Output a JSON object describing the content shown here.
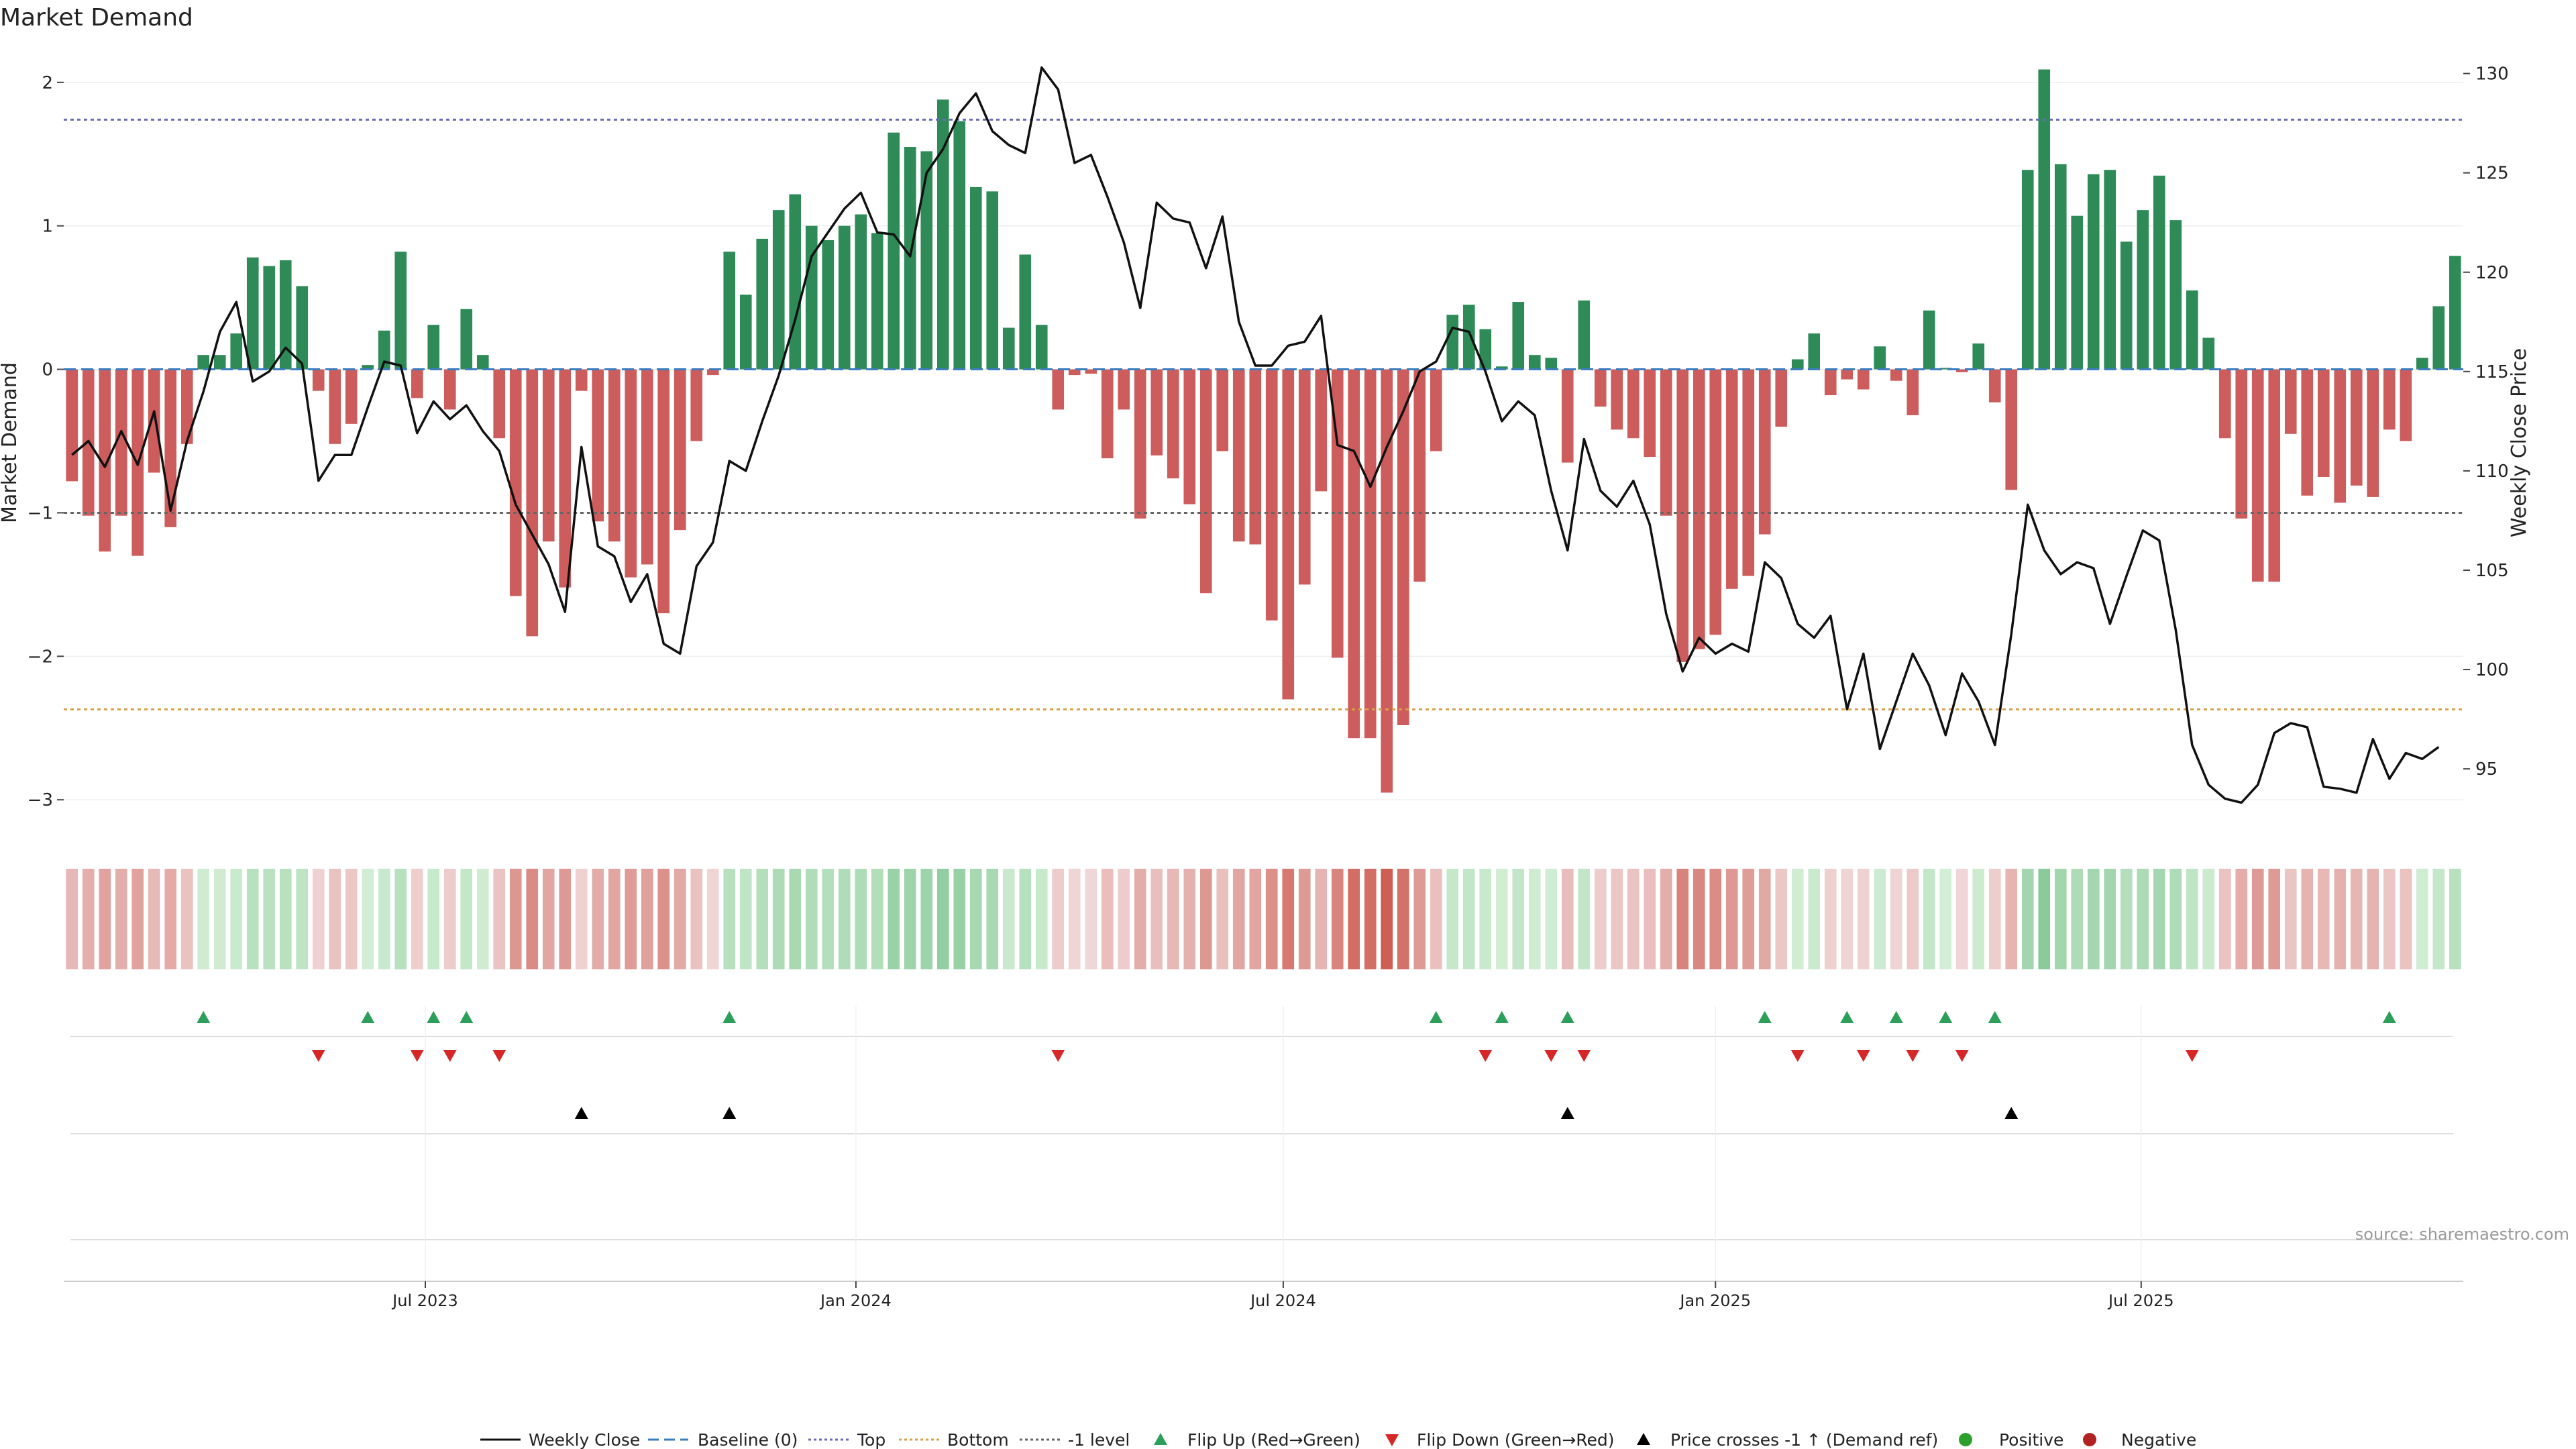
{
  "chart_data": {
    "type": "bar",
    "title": "Market Demand",
    "ylabel": "Market Demand",
    "y2label": "Weekly Close Price",
    "source": "source: sharemaestro.com",
    "ylim": [
      -3.2,
      2.2
    ],
    "y_ticks": [
      {
        "value": 2,
        "label": "2"
      },
      {
        "value": 1,
        "label": "1"
      },
      {
        "value": 0,
        "label": "0"
      },
      {
        "value": -1,
        "label": "−1"
      },
      {
        "value": -2,
        "label": "−2"
      },
      {
        "value": -3,
        "label": "−3"
      }
    ],
    "y2lim": [
      92,
      131
    ],
    "y2_ticks": [
      {
        "value": 130,
        "label": "130"
      },
      {
        "value": 125,
        "label": "125"
      },
      {
        "value": 120,
        "label": "120"
      },
      {
        "value": 115,
        "label": "115"
      },
      {
        "value": 110,
        "label": "110"
      },
      {
        "value": 105,
        "label": "105"
      },
      {
        "value": 100,
        "label": "100"
      },
      {
        "value": 95,
        "label": "95"
      }
    ],
    "x_ticks": [
      {
        "week": 21.5,
        "label": "Jul 2023"
      },
      {
        "week": 47.7,
        "label": "Jan 2024"
      },
      {
        "week": 73.7,
        "label": "Jul 2024"
      },
      {
        "week": 100,
        "label": "Jan 2025"
      },
      {
        "week": 125.9,
        "label": "Jul 2025"
      }
    ],
    "reference_lines": [
      {
        "name": "Top",
        "value": 1.74,
        "color": "#6b6bb5"
      },
      {
        "name": "Bottom",
        "value": -2.37,
        "color": "#d9a04a"
      },
      {
        "name": "-1 level",
        "value": -1.0,
        "color": "#666666"
      },
      {
        "name": "Baseline (0)",
        "value": 0,
        "color": "#3b7dbf"
      }
    ],
    "demand": [
      -0.78,
      -1.02,
      -1.27,
      -1.02,
      -1.3,
      -0.72,
      -1.1,
      -0.52,
      0.1,
      0.1,
      0.25,
      0.78,
      0.72,
      0.76,
      0.58,
      -0.15,
      -0.52,
      -0.38,
      0.03,
      0.27,
      0.82,
      -0.2,
      0.31,
      -0.28,
      0.42,
      0.1,
      -0.48,
      -1.58,
      -1.86,
      -1.2,
      -1.52,
      -0.15,
      -1.06,
      -1.2,
      -1.45,
      -1.36,
      -1.7,
      -1.12,
      -0.5,
      -0.04,
      0.82,
      0.52,
      0.91,
      1.11,
      1.22,
      1.0,
      0.9,
      1.0,
      1.08,
      0.95,
      1.65,
      1.55,
      1.52,
      1.88,
      1.73,
      1.27,
      1.24,
      0.29,
      0.8,
      0.31,
      -0.28,
      -0.04,
      -0.03,
      -0.62,
      -0.28,
      -1.04,
      -0.6,
      -0.76,
      -0.94,
      -1.56,
      -0.57,
      -1.2,
      -1.22,
      -1.75,
      -2.3,
      -1.5,
      -0.85,
      -2.01,
      -2.57,
      -2.57,
      -2.95,
      -2.48,
      -1.48,
      -0.57,
      0.38,
      0.45,
      0.28,
      0.02,
      0.47,
      0.1,
      0.08,
      -0.65,
      0.48,
      -0.26,
      -0.42,
      -0.48,
      -0.61,
      -1.02,
      -2.04,
      -1.95,
      -1.85,
      -1.53,
      -1.44,
      -1.15,
      -0.4,
      0.07,
      0.25,
      -0.18,
      -0.07,
      -0.14,
      0.16,
      -0.08,
      -0.32,
      0.41,
      0.01,
      -0.02,
      0.18,
      -0.23,
      -0.84,
      1.39,
      2.09,
      1.43,
      1.07,
      1.36,
      1.39,
      0.89,
      1.11,
      1.35,
      1.04,
      0.55,
      0.22,
      -0.48,
      -1.04,
      -1.48,
      -1.48,
      -0.45,
      -0.88,
      -0.75,
      -0.93,
      -0.81,
      -0.89,
      -0.42,
      -0.5,
      0.08,
      0.44,
      0.79
    ],
    "price": [
      110.8,
      111.5,
      110.2,
      112.0,
      110.3,
      113.0,
      108.0,
      111.5,
      114.0,
      117.0,
      118.5,
      114.5,
      115.0,
      116.2,
      115.4,
      109.5,
      110.8,
      110.8,
      113.2,
      115.5,
      115.3,
      111.9,
      113.5,
      112.6,
      113.3,
      112.0,
      111.0,
      108.3,
      106.8,
      105.3,
      102.9,
      111.2,
      106.2,
      105.7,
      103.4,
      104.8,
      101.3,
      100.8,
      105.2,
      106.4,
      110.5,
      110.0,
      112.5,
      114.8,
      117.6,
      120.8,
      122.0,
      123.2,
      124.0,
      122.0,
      121.9,
      120.8,
      125.0,
      126.2,
      128.0,
      129.0,
      127.1,
      126.4,
      126.0,
      130.3,
      129.2,
      125.5,
      125.9,
      123.8,
      121.5,
      118.2,
      123.5,
      122.7,
      122.5,
      120.2,
      122.8,
      117.5,
      115.3,
      115.3,
      116.3,
      116.5,
      117.8,
      111.3,
      111.0,
      109.2,
      111.2,
      113.0,
      115.0,
      115.5,
      117.2,
      117.0,
      115.0,
      112.5,
      113.5,
      112.8,
      109.0,
      106.0,
      111.6,
      109.0,
      108.2,
      109.5,
      107.3,
      102.8,
      99.9,
      101.6,
      100.8,
      101.3,
      100.9,
      105.4,
      104.6,
      102.3,
      101.6,
      102.7,
      98.0,
      100.8,
      96.0,
      98.4,
      100.8,
      99.2,
      96.7,
      99.8,
      98.4,
      96.2,
      101.8,
      108.3,
      106.0,
      104.8,
      105.4,
      105.1,
      102.3,
      104.7,
      107.0,
      106.5,
      102.0,
      96.2,
      94.2,
      93.5,
      93.3,
      94.2,
      96.8,
      97.3,
      97.1,
      94.1,
      94.0,
      93.8,
      96.5,
      94.5,
      95.8,
      95.5,
      96.1
    ]
  },
  "markers": {
    "flip_up_weeks": [
      8,
      18,
      22,
      24,
      40,
      83,
      87,
      91,
      103,
      108,
      111,
      114,
      117,
      141
    ],
    "flip_down_weeks": [
      15,
      21,
      23,
      26,
      60,
      86,
      90,
      92,
      105,
      109,
      112,
      115,
      129
    ],
    "price_cross_weeks": [
      31,
      40,
      91,
      118
    ]
  },
  "colors": {
    "positive": "#2e8b57",
    "negative": "#cd5c5c",
    "price_line": "#111111",
    "flip_up": "#2ca05a",
    "flip_down": "#d62728",
    "cross": "#000000",
    "legend_positive": "#2ca02c",
    "legend_negative": "#b22222"
  },
  "legend": {
    "weekly_close": "Weekly Close",
    "baseline": "Baseline (0)",
    "top": "Top",
    "bottom": "Bottom",
    "minus1": "-1 level",
    "flip_up": "Flip Up (Red→Green)",
    "flip_down": "Flip Down (Green→Red)",
    "price_cross": "Price crosses -1 ↑ (Demand ref)",
    "positive": "Positive",
    "negative": "Negative"
  }
}
